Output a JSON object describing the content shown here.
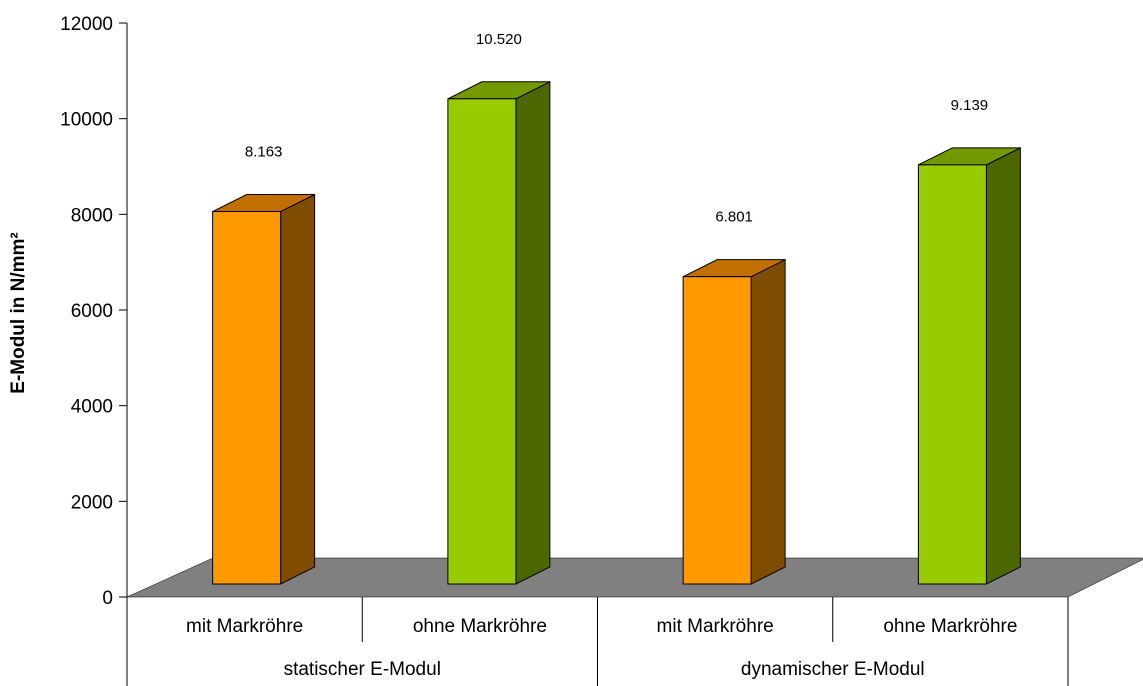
{
  "chart_data": {
    "type": "bar",
    "style": "3d-column",
    "ylabel": "E-Modul in N/mm²",
    "ylim": [
      0,
      12000
    ],
    "yticks": [
      0,
      2000,
      4000,
      6000,
      8000,
      10000,
      12000
    ],
    "ytick_labels": [
      "0",
      "2000",
      "4000",
      "6000",
      "8000",
      "10000",
      "12000"
    ],
    "groups": [
      {
        "label": "statischer E-Modul",
        "bars": [
          {
            "category": "mit Markröhre",
            "value": 8163,
            "label": "8.163",
            "color": "orange"
          },
          {
            "category": "ohne Markröhre",
            "value": 10520,
            "label": "10.520",
            "color": "green"
          }
        ]
      },
      {
        "label": "dynamischer E-Modul",
        "bars": [
          {
            "category": "mit Markröhre",
            "value": 6801,
            "label": "6.801",
            "color": "orange"
          },
          {
            "category": "ohne Markröhre",
            "value": 9139,
            "label": "9.139",
            "color": "green"
          }
        ]
      }
    ],
    "colors": {
      "orange": {
        "front": "#FF9900",
        "side": "#804C00",
        "top": "#C06F00"
      },
      "green": {
        "front": "#99CC00",
        "side": "#4C6600",
        "top": "#729900"
      },
      "floor": "#808080"
    },
    "grid": false,
    "legend": "none"
  }
}
